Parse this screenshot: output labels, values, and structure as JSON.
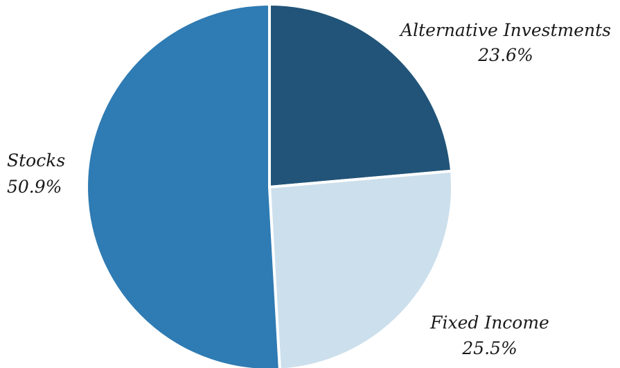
{
  "chart_data": {
    "type": "pie",
    "title": "",
    "slices": [
      {
        "label": "Alternative Investments",
        "value": 23.6,
        "display": "23.6%",
        "color": "#215478"
      },
      {
        "label": "Fixed Income",
        "value": 25.5,
        "display": "25.5%",
        "color": "#CCDFEC"
      },
      {
        "label": "Stocks",
        "value": 50.9,
        "display": "50.9%",
        "color": "#2F7BB3"
      }
    ],
    "start_angle": "12 o'clock",
    "direction": "clockwise",
    "legend": "none",
    "slice_border_color": "#ffffff"
  }
}
